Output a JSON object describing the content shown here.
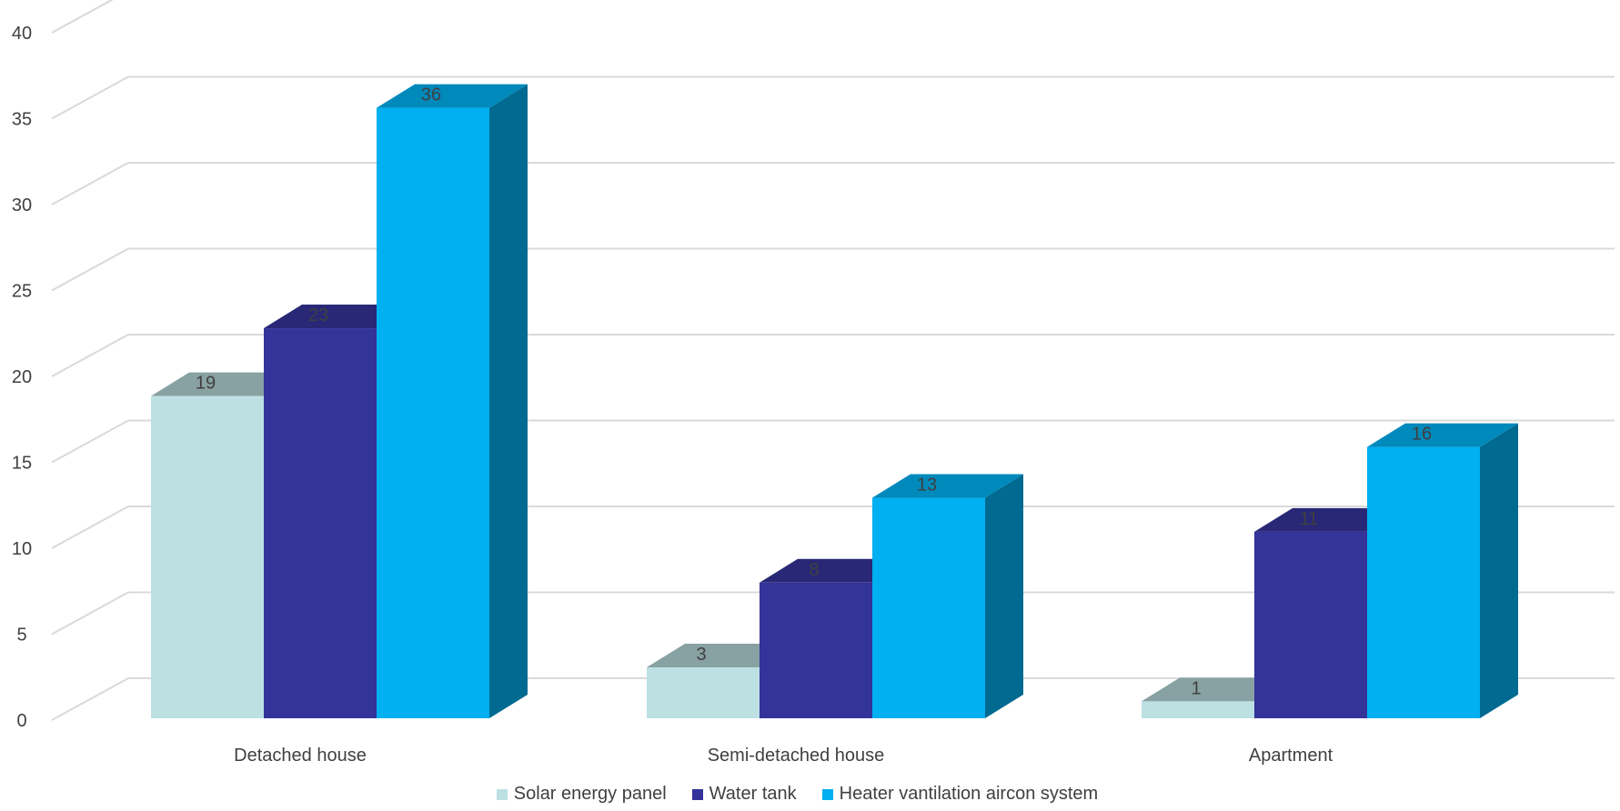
{
  "chart_data": {
    "type": "bar",
    "title": "",
    "xlabel": "",
    "ylabel": "",
    "categories": [
      "Detached house",
      "Semi-detached house",
      "Apartment"
    ],
    "series": [
      {
        "name": "Solar energy panel",
        "values": [
          19,
          3,
          1
        ],
        "color": "#BDE0E3"
      },
      {
        "name": "Water tank",
        "values": [
          23,
          8,
          11
        ],
        "color": "#333399"
      },
      {
        "name": "Heater vantilation aircon system",
        "values": [
          36,
          13,
          16
        ],
        "color": "#00B0F0"
      }
    ],
    "ylim": [
      0,
      40
    ],
    "yticks": [
      "0",
      "5",
      "10",
      "15",
      "20",
      "25",
      "30",
      "35",
      "40"
    ],
    "grid": true,
    "legend_position": "bottom",
    "style": "3d-clustered-column"
  }
}
